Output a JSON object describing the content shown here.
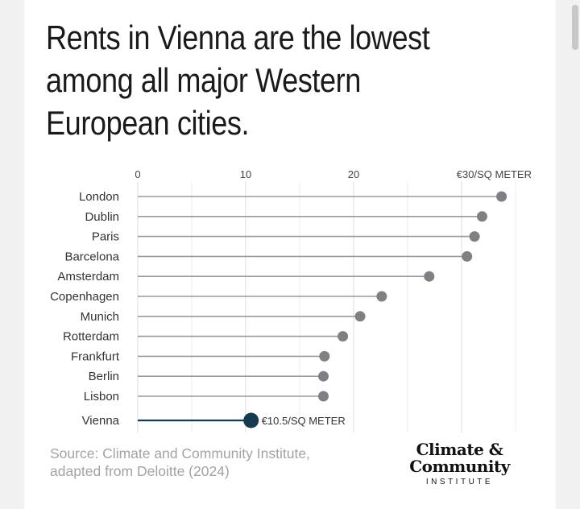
{
  "title": "Rents in Vienna are the lowest among all major Western European cities.",
  "chart_data": {
    "type": "lollipop",
    "title": "Rents in Vienna are the lowest among all major Western European cities.",
    "unit_label": "€30/SQ METER",
    "xlim": [
      0,
      30
    ],
    "x_ticks": [
      "0",
      "10",
      "20",
      "€30/SQ METER"
    ],
    "x_tick_values": [
      0,
      10,
      20,
      30
    ],
    "categories": [
      "London",
      "Dublin",
      "Paris",
      "Barcelona",
      "Amsterdam",
      "Copenhagen",
      "Munich",
      "Rotterdam",
      "Frankfurt",
      "Berlin",
      "Lisbon",
      "Vienna"
    ],
    "values": [
      33.7,
      31.9,
      31.2,
      30.5,
      27.0,
      22.6,
      20.6,
      19.0,
      17.3,
      17.2,
      17.2,
      10.5
    ],
    "highlight": {
      "category": "Vienna",
      "label": "€10.5/SQ METER"
    },
    "colors": {
      "default": "#808084",
      "line": "#9a9a9a",
      "highlight": "#163a50"
    }
  },
  "source": {
    "line1": "Source: Climate and Community Institute,",
    "line2": "adapted from Deloitte (2024)"
  },
  "logo": {
    "line1": "Climate &",
    "line2": "Community",
    "line3": "INSTITUTE"
  }
}
